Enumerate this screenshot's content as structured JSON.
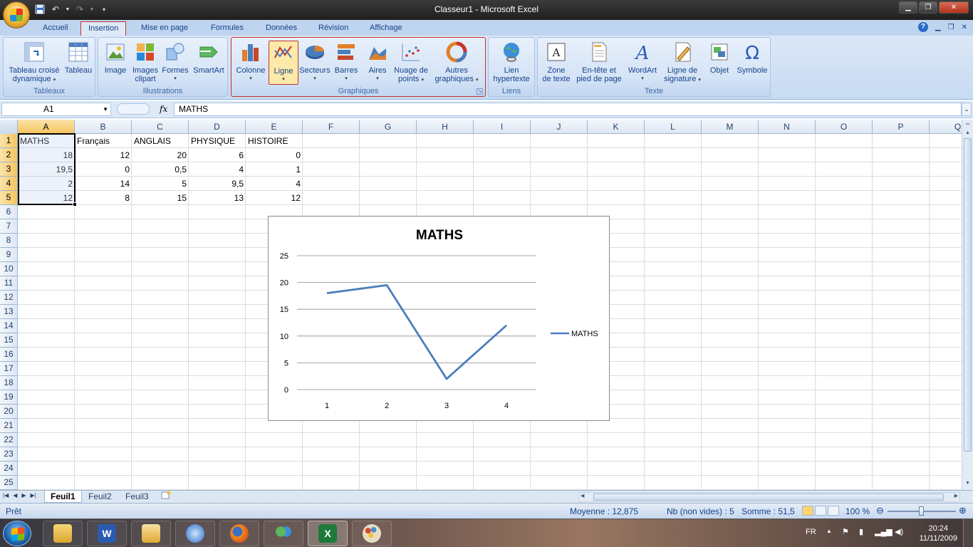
{
  "window": {
    "title": "Classeur1 - Microsoft Excel"
  },
  "tabs": [
    "Accueil",
    "Insertion",
    "Mise en page",
    "Formules",
    "Données",
    "Révision",
    "Affichage"
  ],
  "ribbon": {
    "tableaux": {
      "label": "Tableaux",
      "btn1": [
        "Tableau croisé",
        "dynamique"
      ],
      "btn2": "Tableau"
    },
    "illustrations": {
      "label": "Illustrations",
      "image": "Image",
      "clipart": [
        "Images",
        "clipart"
      ],
      "formes": "Formes",
      "smartart": "SmartArt"
    },
    "graphiques": {
      "label": "Graphiques",
      "colonne": "Colonne",
      "ligne": "Ligne",
      "secteurs": "Secteurs",
      "barres": "Barres",
      "aires": "Aires",
      "nuage": [
        "Nuage de",
        "points"
      ],
      "autres": [
        "Autres",
        "graphiques"
      ]
    },
    "liens": {
      "label": "Liens",
      "lien": [
        "Lien",
        "hypertexte"
      ]
    },
    "texte": {
      "label": "Texte",
      "zone": [
        "Zone",
        "de texte"
      ],
      "entete": [
        "En-tête et",
        "pied de page"
      ],
      "wordart": "WordArt",
      "signature": [
        "Ligne de",
        "signature"
      ],
      "objet": "Objet",
      "symbole": "Symbole"
    }
  },
  "formula": {
    "namebox": "A1",
    "fx": "fx",
    "content": "MATHS"
  },
  "columns": [
    "A",
    "B",
    "C",
    "D",
    "E",
    "F",
    "G",
    "H",
    "I",
    "J",
    "K",
    "L",
    "M",
    "N",
    "O",
    "P",
    "Q"
  ],
  "rows": [
    "1",
    "2",
    "3",
    "4",
    "5",
    "6",
    "7",
    "8",
    "9",
    "10",
    "11",
    "12",
    "13",
    "14",
    "15",
    "16",
    "17",
    "18",
    "19",
    "20",
    "21",
    "22",
    "23",
    "24",
    "25"
  ],
  "sheet": {
    "header": [
      "MATHS",
      "Français",
      "ANGLAIS",
      "PHYSIQUE",
      "HISTOIRE"
    ],
    "data": [
      [
        "18",
        "12",
        "20",
        "6",
        "0"
      ],
      [
        "19,5",
        "0",
        "0,5",
        "4",
        "1"
      ],
      [
        "2",
        "14",
        "5",
        "9,5",
        "4"
      ],
      [
        "12",
        "8",
        "15",
        "13",
        "12"
      ]
    ]
  },
  "chart_data": {
    "type": "line",
    "title": "MATHS",
    "x": [
      "1",
      "2",
      "3",
      "4"
    ],
    "series": [
      {
        "name": "MATHS",
        "values": [
          18,
          19.5,
          2,
          12
        ],
        "color": "#4a7ebb"
      }
    ],
    "ylim": [
      0,
      25
    ],
    "yticks": [
      "0",
      "5",
      "10",
      "15",
      "20",
      "25"
    ],
    "grid": true,
    "legend": "right"
  },
  "sheettabs": [
    "Feuil1",
    "Feuil2",
    "Feuil3"
  ],
  "status": {
    "ready": "Prêt",
    "moyenne": "Moyenne : 12,875",
    "nb": "Nb (non vides) : 5",
    "somme": "Somme : 51,5",
    "zoom": "100 %"
  },
  "taskbar": {
    "lang": "FR",
    "time": "20:24",
    "date": "11/11/2009"
  }
}
